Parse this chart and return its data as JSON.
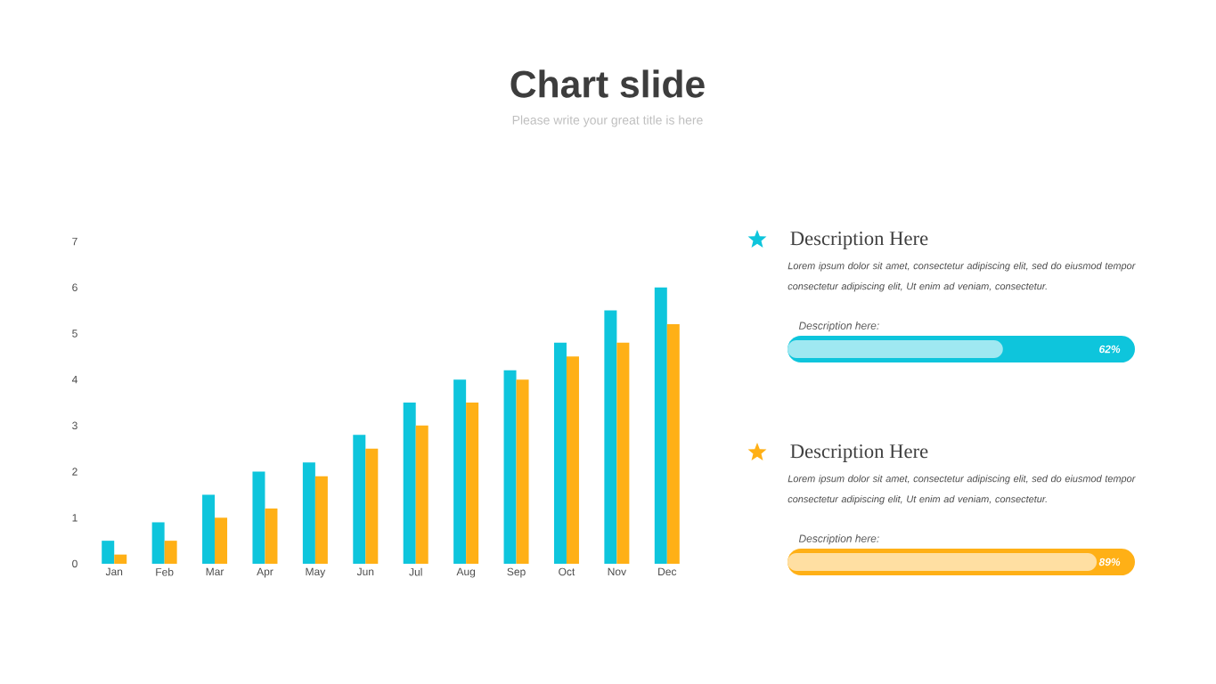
{
  "chart_data": [
    {
      "type": "bar",
      "title": "Chart slide",
      "subtitle": "Please write your great title is here",
      "categories": [
        "Jan",
        "Feb",
        "Mar",
        "Apr",
        "May",
        "Jun",
        "Jul",
        "Aug",
        "Sep",
        "Oct",
        "Nov",
        "Dec"
      ],
      "series": [
        {
          "color": "#0ec5dc",
          "values": [
            0.5,
            0.9,
            1.5,
            2.0,
            2.2,
            2.8,
            3.5,
            4.0,
            4.2,
            4.8,
            5.5,
            6.0
          ]
        },
        {
          "color": "#ffb016",
          "values": [
            0.2,
            0.5,
            1.0,
            1.2,
            1.9,
            2.5,
            3.0,
            3.5,
            4.0,
            4.5,
            4.8,
            5.2
          ]
        }
      ],
      "ylim": [
        0,
        7
      ],
      "yticks": [
        0,
        1,
        2,
        3,
        4,
        5,
        6,
        7
      ]
    },
    {
      "type": "other",
      "title": "Description Here",
      "subtitle": "Lorem ipsum dolor sit amet, consectetur adipiscing elit, sed do eiusmod tempor consectetur adipiscing elit, Ut enim ad veniam, consectetur.",
      "categories": [
        null
      ],
      "annotations": [
        "Description here:"
      ],
      "values": [
        62
      ],
      "color": "#0ec5dc",
      "value_labels": [
        "62%"
      ]
    },
    {
      "type": "other",
      "title": "Description Here",
      "subtitle": "Lorem ipsum dolor sit amet, consectetur adipiscing elit, sed do eiusmod tempor consectetur adipiscing elit, Ut enim ad veniam, consectetur.",
      "categories": [
        null
      ],
      "annotations": [
        "Description here:"
      ],
      "values": [
        89
      ],
      "color": "#ffb016",
      "value_labels": [
        "89%"
      ]
    }
  ]
}
